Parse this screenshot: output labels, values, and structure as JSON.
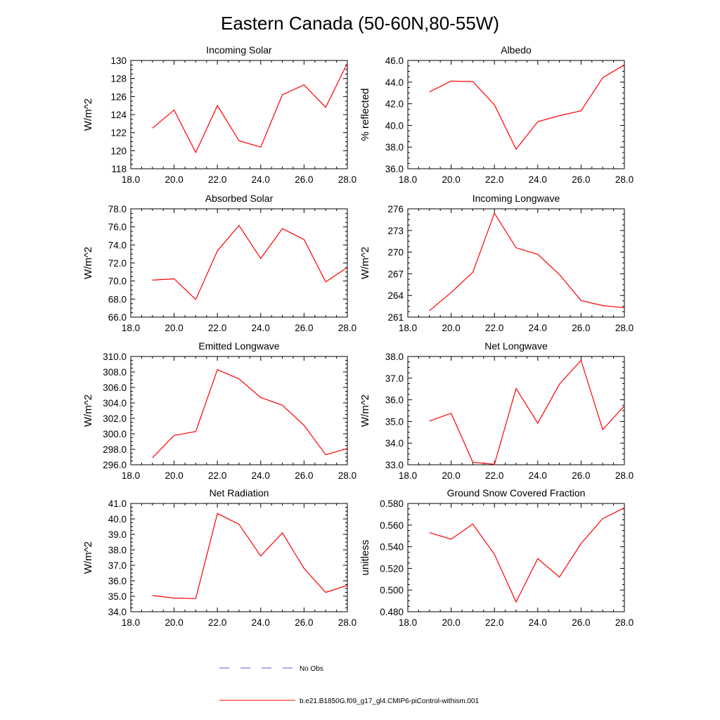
{
  "title": "Eastern Canada (50-60N,80-55W)",
  "colors": {
    "model": "#ff0000",
    "obs": "#5a5adc",
    "axis": "#000000"
  },
  "legend": {
    "obs_label": "No Obs",
    "model_label": "b.e21.B1850G.f09_g17_gl4.CMIP6-piControl-withism.001"
  },
  "chart_data": [
    {
      "type": "line",
      "title": "Incoming Solar",
      "ylabel": "W/m^2",
      "xlim": [
        18,
        28
      ],
      "ylim": [
        118,
        130
      ],
      "xticks": [
        "18.0",
        "20.0",
        "22.0",
        "24.0",
        "26.0",
        "28.0"
      ],
      "yticks": [
        "118",
        "120",
        "122",
        "124",
        "126",
        "128",
        "130"
      ],
      "x": [
        19,
        20,
        21,
        22,
        23,
        24,
        25,
        26,
        27,
        28
      ],
      "values": [
        122.5,
        124.5,
        119.8,
        125.0,
        121.1,
        120.4,
        126.2,
        127.3,
        124.8,
        129.7
      ]
    },
    {
      "type": "line",
      "title": "Albedo",
      "ylabel": "% reflected",
      "xlim": [
        18,
        28
      ],
      "ylim": [
        36,
        46
      ],
      "xticks": [
        "18.0",
        "20.0",
        "22.0",
        "24.0",
        "26.0",
        "28.0"
      ],
      "yticks": [
        "36.0",
        "38.0",
        "40.0",
        "42.0",
        "44.0",
        "46.0"
      ],
      "x": [
        19,
        20,
        21,
        22,
        23,
        24,
        25,
        26,
        27,
        28
      ],
      "values": [
        43.1,
        44.1,
        44.05,
        41.9,
        37.8,
        40.35,
        40.9,
        41.35,
        44.4,
        45.6
      ]
    },
    {
      "type": "line",
      "title": "Absorbed Solar",
      "ylabel": "W/m^2",
      "xlim": [
        18,
        28
      ],
      "ylim": [
        66,
        78
      ],
      "xticks": [
        "18.0",
        "20.0",
        "22.0",
        "24.0",
        "26.0",
        "28.0"
      ],
      "yticks": [
        "66.0",
        "68.0",
        "70.0",
        "72.0",
        "74.0",
        "76.0",
        "78.0"
      ],
      "x": [
        19,
        20,
        21,
        22,
        23,
        24,
        25,
        26,
        27,
        28
      ],
      "values": [
        70.1,
        70.25,
        67.95,
        73.35,
        76.15,
        72.5,
        75.8,
        74.6,
        69.9,
        71.5
      ]
    },
    {
      "type": "line",
      "title": "Incoming Longwave",
      "ylabel": "W/m^2",
      "xlim": [
        18,
        28
      ],
      "ylim": [
        261,
        276
      ],
      "xticks": [
        "18.0",
        "20.0",
        "22.0",
        "24.0",
        "26.0",
        "28.0"
      ],
      "yticks": [
        "261",
        "264",
        "267",
        "270",
        "273",
        "276"
      ],
      "x": [
        19,
        20,
        21,
        22,
        23,
        24,
        25,
        26,
        27,
        28
      ],
      "values": [
        261.9,
        264.4,
        267.2,
        275.4,
        270.6,
        269.7,
        266.9,
        263.3,
        262.6,
        262.3
      ]
    },
    {
      "type": "line",
      "title": "Emitted Longwave",
      "ylabel": "W/m^2",
      "xlim": [
        18,
        28
      ],
      "ylim": [
        296,
        310
      ],
      "xticks": [
        "18.0",
        "20.0",
        "22.0",
        "24.0",
        "26.0",
        "28.0"
      ],
      "yticks": [
        "296.0",
        "298.0",
        "300.0",
        "302.0",
        "304.0",
        "306.0",
        "308.0",
        "310.0"
      ],
      "x": [
        19,
        20,
        21,
        22,
        23,
        24,
        25,
        26,
        27,
        28
      ],
      "values": [
        296.9,
        299.8,
        300.3,
        308.3,
        307.1,
        304.7,
        303.7,
        301.1,
        297.3,
        298.1
      ]
    },
    {
      "type": "line",
      "title": "Net Longwave",
      "ylabel": "W/m^2",
      "xlim": [
        18,
        28
      ],
      "ylim": [
        33,
        38
      ],
      "xticks": [
        "18.0",
        "20.0",
        "22.0",
        "24.0",
        "26.0",
        "28.0"
      ],
      "yticks": [
        "33.0",
        "34.0",
        "35.0",
        "36.0",
        "37.0",
        "38.0"
      ],
      "x": [
        19,
        20,
        21,
        22,
        23,
        24,
        25,
        26,
        27,
        28
      ],
      "values": [
        35.02,
        35.38,
        33.12,
        33.02,
        36.52,
        34.92,
        36.72,
        37.82,
        34.62,
        35.72
      ]
    },
    {
      "type": "line",
      "title": "Net Radiation",
      "ylabel": "W/m^2",
      "xlim": [
        18,
        28
      ],
      "ylim": [
        34,
        41
      ],
      "xticks": [
        "18.0",
        "20.0",
        "22.0",
        "24.0",
        "26.0",
        "28.0"
      ],
      "yticks": [
        "34.0",
        "35.0",
        "36.0",
        "37.0",
        "38.0",
        "39.0",
        "40.0",
        "41.0"
      ],
      "x": [
        19,
        20,
        21,
        22,
        23,
        24,
        25,
        26,
        27,
        28
      ],
      "values": [
        35.05,
        34.88,
        34.85,
        40.35,
        39.65,
        37.6,
        39.1,
        36.8,
        35.25,
        35.7
      ]
    },
    {
      "type": "line",
      "title": "Ground Snow Covered Fraction",
      "ylabel": "unitless",
      "xlim": [
        18,
        28
      ],
      "ylim": [
        0.48,
        0.58
      ],
      "xticks": [
        "18.0",
        "20.0",
        "22.0",
        "24.0",
        "26.0",
        "28.0"
      ],
      "yticks": [
        "0.480",
        "0.500",
        "0.520",
        "0.540",
        "0.560",
        "0.580"
      ],
      "x": [
        19,
        20,
        21,
        22,
        23,
        24,
        25,
        26,
        27,
        28
      ],
      "values": [
        0.553,
        0.547,
        0.561,
        0.533,
        0.489,
        0.529,
        0.512,
        0.543,
        0.566,
        0.576
      ]
    }
  ]
}
